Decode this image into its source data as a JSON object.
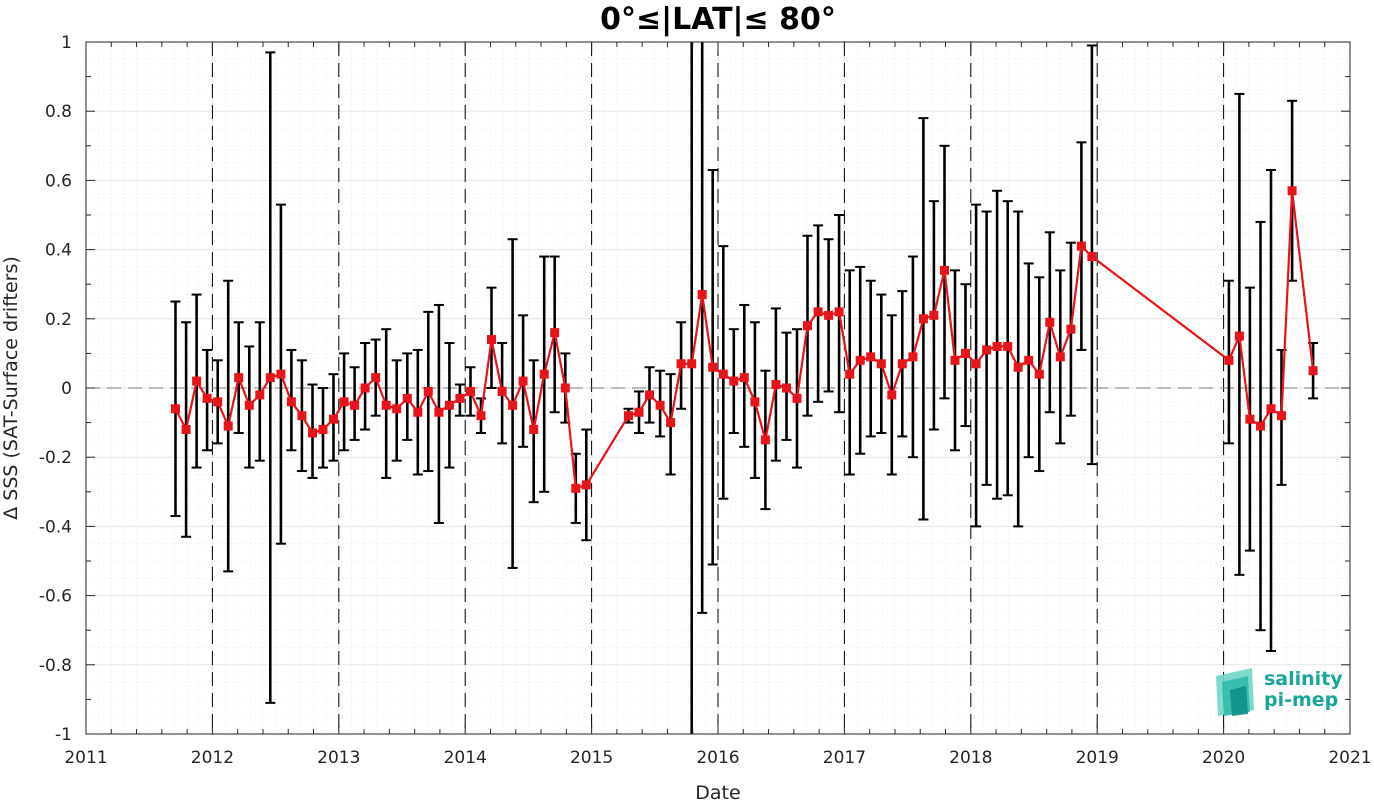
{
  "chart_data": {
    "type": "line",
    "title": "0°≤|LAT|≤ 80°",
    "xlabel": "Date",
    "ylabel": "Δ SSS (SAT-Surface drifters)",
    "xlim": [
      2011,
      2021
    ],
    "ylim": [
      -1,
      1
    ],
    "x_ticks": [
      "2011",
      "2012",
      "2013",
      "2014",
      "2015",
      "2016",
      "2017",
      "2018",
      "2019",
      "2020",
      "2021"
    ],
    "y_ticks": [
      "-1",
      "-0.8",
      "-0.6",
      "-0.4",
      "-0.2",
      "0",
      "0.2",
      "0.4",
      "0.6",
      "0.8",
      "1"
    ],
    "grid": true,
    "series_color": "#e8141b",
    "errorbar_color": "#000000",
    "zero_line": 0,
    "year_marker_lines": [
      2012,
      2013,
      2014,
      2015,
      2016,
      2017,
      2018,
      2019,
      2020
    ],
    "series": [
      {
        "points": [
          {
            "x": 2011.708,
            "y": -0.06,
            "lo": -0.37,
            "hi": 0.25
          },
          {
            "x": 2011.792,
            "y": -0.12,
            "lo": -0.43,
            "hi": 0.19
          },
          {
            "x": 2011.875,
            "y": 0.02,
            "lo": -0.23,
            "hi": 0.27
          },
          {
            "x": 2011.958,
            "y": -0.03,
            "lo": -0.18,
            "hi": 0.11
          },
          {
            "x": 2012.042,
            "y": -0.04,
            "lo": -0.16,
            "hi": 0.08
          },
          {
            "x": 2012.125,
            "y": -0.11,
            "lo": -0.53,
            "hi": 0.31
          },
          {
            "x": 2012.208,
            "y": 0.03,
            "lo": -0.13,
            "hi": 0.19
          },
          {
            "x": 2012.292,
            "y": -0.05,
            "lo": -0.23,
            "hi": 0.12
          },
          {
            "x": 2012.375,
            "y": -0.02,
            "lo": -0.21,
            "hi": 0.19
          },
          {
            "x": 2012.458,
            "y": 0.03,
            "lo": -0.91,
            "hi": 0.97
          },
          {
            "x": 2012.542,
            "y": 0.04,
            "lo": -0.45,
            "hi": 0.53
          },
          {
            "x": 2012.625,
            "y": -0.04,
            "lo": -0.18,
            "hi": 0.11
          },
          {
            "x": 2012.708,
            "y": -0.08,
            "lo": -0.24,
            "hi": 0.08
          },
          {
            "x": 2012.792,
            "y": -0.13,
            "lo": -0.26,
            "hi": 0.01
          },
          {
            "x": 2012.875,
            "y": -0.12,
            "lo": -0.23,
            "hi": 0.0
          },
          {
            "x": 2012.958,
            "y": -0.09,
            "lo": -0.21,
            "hi": 0.04
          },
          {
            "x": 2013.042,
            "y": -0.04,
            "lo": -0.18,
            "hi": 0.1
          },
          {
            "x": 2013.125,
            "y": -0.05,
            "lo": -0.15,
            "hi": 0.06
          },
          {
            "x": 2013.208,
            "y": 0.0,
            "lo": -0.12,
            "hi": 0.13
          },
          {
            "x": 2013.292,
            "y": 0.03,
            "lo": -0.08,
            "hi": 0.14
          },
          {
            "x": 2013.375,
            "y": -0.05,
            "lo": -0.26,
            "hi": 0.17
          },
          {
            "x": 2013.458,
            "y": -0.06,
            "lo": -0.21,
            "hi": 0.08
          },
          {
            "x": 2013.542,
            "y": -0.03,
            "lo": -0.15,
            "hi": 0.1
          },
          {
            "x": 2013.625,
            "y": -0.07,
            "lo": -0.25,
            "hi": 0.11
          },
          {
            "x": 2013.708,
            "y": -0.01,
            "lo": -0.24,
            "hi": 0.22
          },
          {
            "x": 2013.792,
            "y": -0.07,
            "lo": -0.39,
            "hi": 0.24
          },
          {
            "x": 2013.875,
            "y": -0.05,
            "lo": -0.23,
            "hi": 0.13
          },
          {
            "x": 2013.958,
            "y": -0.03,
            "lo": -0.08,
            "hi": 0.01
          },
          {
            "x": 2014.042,
            "y": -0.01,
            "lo": -0.08,
            "hi": 0.06
          },
          {
            "x": 2014.125,
            "y": -0.08,
            "lo": -0.13,
            "hi": -0.03
          },
          {
            "x": 2014.208,
            "y": 0.14,
            "lo": 0.0,
            "hi": 0.29
          },
          {
            "x": 2014.292,
            "y": -0.01,
            "lo": -0.16,
            "hi": 0.13
          },
          {
            "x": 2014.375,
            "y": -0.05,
            "lo": -0.52,
            "hi": 0.43
          },
          {
            "x": 2014.458,
            "y": 0.02,
            "lo": -0.17,
            "hi": 0.21
          },
          {
            "x": 2014.542,
            "y": -0.12,
            "lo": -0.33,
            "hi": 0.08
          },
          {
            "x": 2014.625,
            "y": 0.04,
            "lo": -0.3,
            "hi": 0.38
          },
          {
            "x": 2014.708,
            "y": 0.16,
            "lo": -0.07,
            "hi": 0.38
          },
          {
            "x": 2014.792,
            "y": 0.0,
            "lo": -0.1,
            "hi": 0.1
          },
          {
            "x": 2014.875,
            "y": -0.29,
            "lo": -0.39,
            "hi": -0.19
          },
          {
            "x": 2014.958,
            "y": -0.28,
            "lo": -0.44,
            "hi": -0.12
          },
          {
            "x": 2015.292,
            "y": -0.08,
            "lo": -0.1,
            "hi": -0.06
          },
          {
            "x": 2015.375,
            "y": -0.07,
            "lo": -0.13,
            "hi": -0.01
          },
          {
            "x": 2015.458,
            "y": -0.02,
            "lo": -0.1,
            "hi": 0.06
          },
          {
            "x": 2015.542,
            "y": -0.05,
            "lo": -0.14,
            "hi": 0.05
          },
          {
            "x": 2015.625,
            "y": -0.1,
            "lo": -0.25,
            "hi": 0.04
          },
          {
            "x": 2015.708,
            "y": 0.07,
            "lo": -0.06,
            "hi": 0.19
          },
          {
            "x": 2015.792,
            "y": 0.07,
            "lo": -1.0,
            "hi": 1.0
          },
          {
            "x": 2015.875,
            "y": 0.27,
            "lo": -0.65,
            "hi": 1.0
          },
          {
            "x": 2015.958,
            "y": 0.06,
            "lo": -0.51,
            "hi": 0.63
          },
          {
            "x": 2016.042,
            "y": 0.04,
            "lo": -0.32,
            "hi": 0.41
          },
          {
            "x": 2016.125,
            "y": 0.02,
            "lo": -0.13,
            "hi": 0.17
          },
          {
            "x": 2016.208,
            "y": 0.03,
            "lo": -0.17,
            "hi": 0.24
          },
          {
            "x": 2016.292,
            "y": -0.04,
            "lo": -0.26,
            "hi": 0.19
          },
          {
            "x": 2016.375,
            "y": -0.15,
            "lo": -0.35,
            "hi": 0.05
          },
          {
            "x": 2016.458,
            "y": 0.01,
            "lo": -0.21,
            "hi": 0.23
          },
          {
            "x": 2016.542,
            "y": 0.0,
            "lo": -0.15,
            "hi": 0.16
          },
          {
            "x": 2016.625,
            "y": -0.03,
            "lo": -0.23,
            "hi": 0.17
          },
          {
            "x": 2016.708,
            "y": 0.18,
            "lo": -0.08,
            "hi": 0.44
          },
          {
            "x": 2016.792,
            "y": 0.22,
            "lo": -0.04,
            "hi": 0.47
          },
          {
            "x": 2016.875,
            "y": 0.21,
            "lo": -0.01,
            "hi": 0.43
          },
          {
            "x": 2016.958,
            "y": 0.22,
            "lo": -0.07,
            "hi": 0.5
          },
          {
            "x": 2017.042,
            "y": 0.04,
            "lo": -0.25,
            "hi": 0.34
          },
          {
            "x": 2017.125,
            "y": 0.08,
            "lo": -0.19,
            "hi": 0.35
          },
          {
            "x": 2017.208,
            "y": 0.09,
            "lo": -0.14,
            "hi": 0.31
          },
          {
            "x": 2017.292,
            "y": 0.07,
            "lo": -0.13,
            "hi": 0.27
          },
          {
            "x": 2017.375,
            "y": -0.02,
            "lo": -0.25,
            "hi": 0.21
          },
          {
            "x": 2017.458,
            "y": 0.07,
            "lo": -0.14,
            "hi": 0.28
          },
          {
            "x": 2017.542,
            "y": 0.09,
            "lo": -0.2,
            "hi": 0.38
          },
          {
            "x": 2017.625,
            "y": 0.2,
            "lo": -0.38,
            "hi": 0.78
          },
          {
            "x": 2017.708,
            "y": 0.21,
            "lo": -0.12,
            "hi": 0.54
          },
          {
            "x": 2017.792,
            "y": 0.34,
            "lo": -0.03,
            "hi": 0.7
          },
          {
            "x": 2017.875,
            "y": 0.08,
            "lo": -0.18,
            "hi": 0.34
          },
          {
            "x": 2017.958,
            "y": 0.1,
            "lo": -0.11,
            "hi": 0.3
          },
          {
            "x": 2018.042,
            "y": 0.07,
            "lo": -0.4,
            "hi": 0.53
          },
          {
            "x": 2018.125,
            "y": 0.11,
            "lo": -0.28,
            "hi": 0.51
          },
          {
            "x": 2018.208,
            "y": 0.12,
            "lo": -0.32,
            "hi": 0.57
          },
          {
            "x": 2018.292,
            "y": 0.12,
            "lo": -0.31,
            "hi": 0.54
          },
          {
            "x": 2018.375,
            "y": 0.06,
            "lo": -0.4,
            "hi": 0.51
          },
          {
            "x": 2018.458,
            "y": 0.08,
            "lo": -0.2,
            "hi": 0.36
          },
          {
            "x": 2018.542,
            "y": 0.04,
            "lo": -0.24,
            "hi": 0.32
          },
          {
            "x": 2018.625,
            "y": 0.19,
            "lo": -0.07,
            "hi": 0.45
          },
          {
            "x": 2018.708,
            "y": 0.09,
            "lo": -0.16,
            "hi": 0.34
          },
          {
            "x": 2018.792,
            "y": 0.17,
            "lo": -0.08,
            "hi": 0.42
          },
          {
            "x": 2018.875,
            "y": 0.41,
            "lo": 0.11,
            "hi": 0.71
          },
          {
            "x": 2018.958,
            "y": 0.38,
            "lo": -0.22,
            "hi": 0.99
          },
          {
            "x": 2020.042,
            "y": 0.08,
            "lo": -0.16,
            "hi": 0.31
          },
          {
            "x": 2020.125,
            "y": 0.15,
            "lo": -0.54,
            "hi": 0.85
          },
          {
            "x": 2020.208,
            "y": -0.09,
            "lo": -0.47,
            "hi": 0.29
          },
          {
            "x": 2020.292,
            "y": -0.11,
            "lo": -0.7,
            "hi": 0.48
          },
          {
            "x": 2020.375,
            "y": -0.06,
            "lo": -0.76,
            "hi": 0.63
          },
          {
            "x": 2020.458,
            "y": -0.08,
            "lo": -0.28,
            "hi": 0.11
          },
          {
            "x": 2020.542,
            "y": 0.57,
            "lo": 0.31,
            "hi": 0.83
          },
          {
            "x": 2020.708,
            "y": 0.05,
            "lo": -0.03,
            "hi": 0.13
          }
        ]
      }
    ]
  },
  "logo": {
    "line1": "salinity",
    "line2": "pi-mep",
    "color": "#1aa59a"
  }
}
